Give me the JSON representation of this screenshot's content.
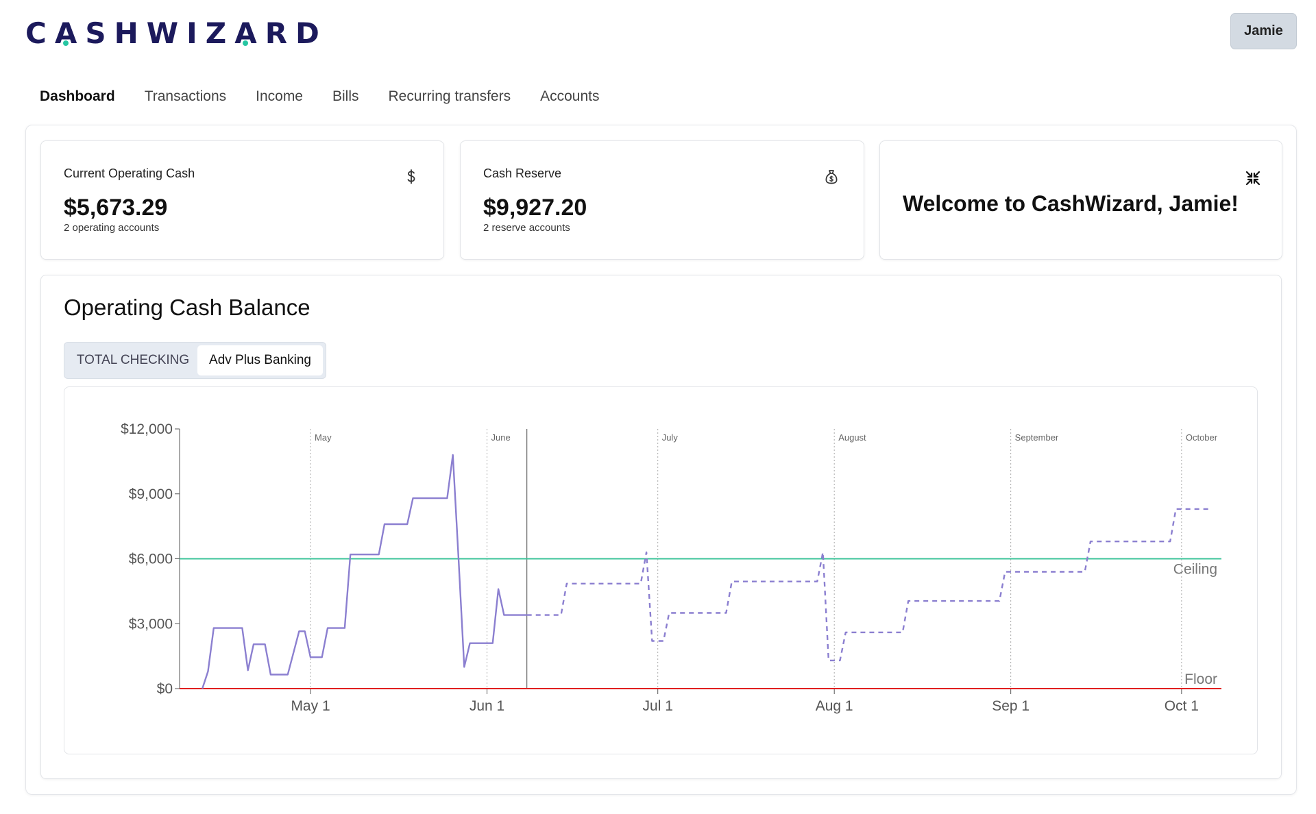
{
  "header": {
    "logo_text": "CASHWIZARD",
    "user_label": "Jamie"
  },
  "nav": {
    "items": [
      {
        "label": "Dashboard",
        "active": true
      },
      {
        "label": "Transactions",
        "active": false
      },
      {
        "label": "Income",
        "active": false
      },
      {
        "label": "Bills",
        "active": false
      },
      {
        "label": "Recurring transfers",
        "active": false
      },
      {
        "label": "Accounts",
        "active": false
      }
    ]
  },
  "cards": {
    "operating": {
      "label": "Current Operating Cash",
      "amount": "$5,673.29",
      "sub": "2 operating accounts",
      "icon": "dollar-icon"
    },
    "reserve": {
      "label": "Cash Reserve",
      "amount": "$9,927.20",
      "sub": "2 reserve accounts",
      "icon": "money-bag-icon"
    },
    "welcome": {
      "text": "Welcome to CashWizard, Jamie!",
      "icon": "close-icon"
    }
  },
  "chart_section": {
    "title": "Operating Cash Balance",
    "tabs": [
      {
        "label": "TOTAL CHECKING",
        "selected": false
      },
      {
        "label": "Adv Plus Banking",
        "selected": true
      }
    ]
  },
  "colors": {
    "brand": "#1c1a5c",
    "accent": "#26c6a2",
    "line": "#8b7fd0",
    "ceiling": "#3cc49a",
    "floor": "#e02020"
  },
  "chart_data": {
    "type": "line",
    "title": "Operating Cash Balance",
    "xlabel": "",
    "ylabel": "",
    "x_range": [
      "2024-04-08",
      "2024-10-08"
    ],
    "ylim": [
      0,
      12000
    ],
    "y_ticks": [
      {
        "value": 0,
        "label": "$0"
      },
      {
        "value": 3000,
        "label": "$3,000"
      },
      {
        "value": 6000,
        "label": "$6,000"
      },
      {
        "value": 9000,
        "label": "$9,000"
      },
      {
        "value": 12000,
        "label": "$12,000"
      }
    ],
    "x_ticks": [
      {
        "date": "2024-05-01",
        "label": "May 1",
        "month": "May"
      },
      {
        "date": "2024-06-01",
        "label": "Jun 1",
        "month": "June"
      },
      {
        "date": "2024-07-01",
        "label": "Jul 1",
        "month": "July"
      },
      {
        "date": "2024-08-01",
        "label": "Aug 1",
        "month": "August"
      },
      {
        "date": "2024-09-01",
        "label": "Sep 1",
        "month": "September"
      },
      {
        "date": "2024-10-01",
        "label": "Oct 1",
        "month": "October"
      }
    ],
    "today": "2024-06-08",
    "reference_lines": [
      {
        "name": "Ceiling",
        "value": 6000
      },
      {
        "name": "Floor",
        "value": 0
      }
    ],
    "series": [
      {
        "style": "actual",
        "points": [
          [
            "2024-04-12",
            0
          ],
          [
            "2024-04-13",
            800
          ],
          [
            "2024-04-14",
            2800
          ],
          [
            "2024-04-19",
            2800
          ],
          [
            "2024-04-20",
            850
          ],
          [
            "2024-04-21",
            2050
          ],
          [
            "2024-04-23",
            2050
          ],
          [
            "2024-04-24",
            650
          ],
          [
            "2024-04-27",
            650
          ],
          [
            "2024-04-29",
            2650
          ],
          [
            "2024-04-30",
            2650
          ],
          [
            "2024-05-01",
            1450
          ],
          [
            "2024-05-03",
            1450
          ],
          [
            "2024-05-04",
            2800
          ],
          [
            "2024-05-07",
            2800
          ],
          [
            "2024-05-08",
            6200
          ],
          [
            "2024-05-13",
            6200
          ],
          [
            "2024-05-14",
            7600
          ],
          [
            "2024-05-18",
            7600
          ],
          [
            "2024-05-19",
            8800
          ],
          [
            "2024-05-25",
            8800
          ],
          [
            "2024-05-26",
            10800
          ],
          [
            "2024-05-27",
            6000
          ],
          [
            "2024-05-28",
            1000
          ],
          [
            "2024-05-29",
            2100
          ],
          [
            "2024-06-02",
            2100
          ],
          [
            "2024-06-03",
            4600
          ],
          [
            "2024-06-04",
            3400
          ],
          [
            "2024-06-08",
            3400
          ]
        ]
      },
      {
        "style": "projected",
        "points": [
          [
            "2024-06-08",
            3400
          ],
          [
            "2024-06-14",
            3400
          ],
          [
            "2024-06-15",
            4850
          ],
          [
            "2024-06-28",
            4850
          ],
          [
            "2024-06-29",
            6300
          ],
          [
            "2024-06-30",
            2200
          ],
          [
            "2024-07-02",
            2200
          ],
          [
            "2024-07-03",
            3500
          ],
          [
            "2024-07-13",
            3500
          ],
          [
            "2024-07-14",
            4950
          ],
          [
            "2024-07-29",
            4950
          ],
          [
            "2024-07-30",
            6300
          ],
          [
            "2024-07-31",
            1300
          ],
          [
            "2024-08-02",
            1300
          ],
          [
            "2024-08-03",
            2600
          ],
          [
            "2024-08-13",
            2600
          ],
          [
            "2024-08-14",
            4050
          ],
          [
            "2024-08-30",
            4050
          ],
          [
            "2024-08-31",
            5400
          ],
          [
            "2024-09-14",
            5400
          ],
          [
            "2024-09-15",
            6800
          ],
          [
            "2024-09-29",
            6800
          ],
          [
            "2024-09-30",
            8300
          ],
          [
            "2024-10-06",
            8300
          ]
        ]
      }
    ],
    "grid": false,
    "legend": "none"
  }
}
